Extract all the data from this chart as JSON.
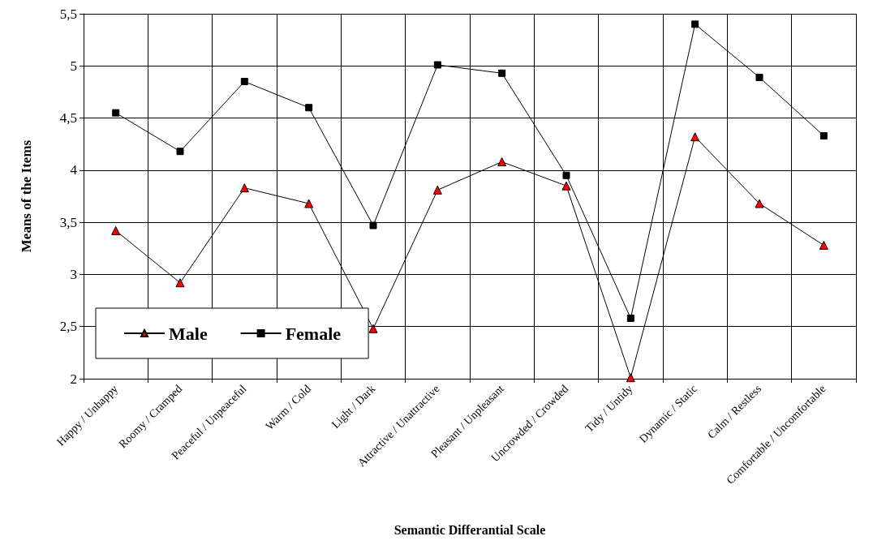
{
  "chart_data": {
    "type": "line",
    "xlabel": "Semantic Differantial Scale",
    "ylabel": "Means of the Items",
    "categories": [
      "Happy / Unhappy",
      "Roomy / Cramped",
      "Peaceful / Unpeaceful",
      "Warm / Cold",
      "Light / Dark",
      "Attractive / Unattractive",
      "Pleasant / Unpleasant",
      "Uncrowded / Crowded",
      "Tidy / Untidy",
      "Dynamic / Static",
      "Calm / Restless",
      "Comfortable / Uncomfortable"
    ],
    "series": [
      {
        "name": "Male",
        "color": "#ff0000",
        "marker": "triangle",
        "values": [
          3.42,
          2.92,
          3.83,
          3.68,
          2.48,
          3.81,
          4.08,
          3.85,
          2.01,
          4.32,
          3.68,
          3.28
        ]
      },
      {
        "name": "Female",
        "color": "#000000",
        "marker": "square",
        "values": [
          4.55,
          4.18,
          4.85,
          4.6,
          3.47,
          5.01,
          4.93,
          3.95,
          2.58,
          5.4,
          4.89,
          4.33
        ]
      }
    ],
    "ylim": [
      2,
      5.5
    ],
    "yticks": [
      2,
      {
        "value": 2.5,
        "label": "2,5"
      },
      3,
      {
        "value": 3.5,
        "label": "3,5"
      },
      4,
      {
        "value": 4.5,
        "label": "4,5"
      },
      5,
      {
        "value": 5.5,
        "label": "5,5"
      }
    ],
    "grid": true,
    "legend": "bottom left",
    "line_style": "solid"
  }
}
